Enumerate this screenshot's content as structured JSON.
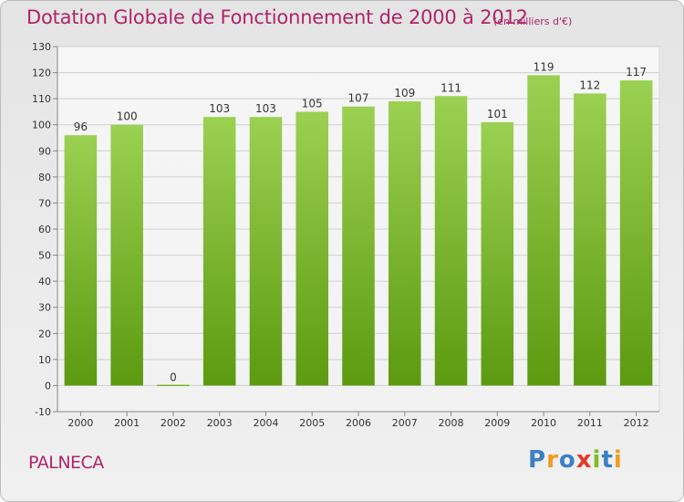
{
  "title": "Dotation Globale de Fonctionnement de 2000 à 2012",
  "subtitle": "(en milliers d'€)",
  "commune": "PALNECA",
  "logo": "Proxiti",
  "colors": {
    "bar_light": "#9bd152",
    "bar_dark": "#5c9a10",
    "title": "#b0246a",
    "grid": "#cfcfcf"
  },
  "chart_data": {
    "type": "bar",
    "title": "Dotation Globale de Fonctionnement de 2000 à 2012",
    "subtitle": "(en milliers d'€)",
    "categories": [
      "2000",
      "2001",
      "2002",
      "2003",
      "2004",
      "2005",
      "2006",
      "2007",
      "2008",
      "2009",
      "2010",
      "2011",
      "2012"
    ],
    "values": [
      96,
      100,
      0,
      103,
      103,
      105,
      107,
      109,
      111,
      101,
      119,
      112,
      117
    ],
    "ylim": [
      -10,
      130
    ],
    "yticks": [
      -10,
      0,
      10,
      20,
      30,
      40,
      50,
      60,
      70,
      80,
      90,
      100,
      110,
      120,
      130
    ],
    "grid": true,
    "xlabel": "",
    "ylabel": ""
  }
}
